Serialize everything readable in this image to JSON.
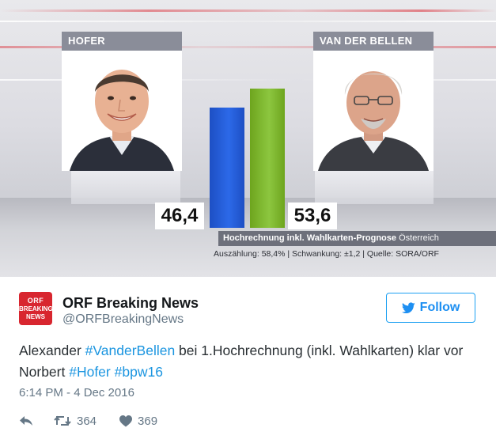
{
  "graphic": {
    "candidates": [
      {
        "name": "HOFER",
        "value": "46,4",
        "value_num": 46.4,
        "bar_color": "#2563e0"
      },
      {
        "name": "VAN DER BELLEN",
        "value": "53,6",
        "value_num": 53.6,
        "bar_color": "#8cc63f"
      }
    ],
    "caption_bold": "Hochrechnung inkl. Wahlkarten-Prognose",
    "caption_light": "Österreich",
    "subcaption": "Auszählung: 58,4% | Schwankung: ±1,2 | Quelle: SORA/ORF"
  },
  "account": {
    "avatar_top": "ORF",
    "avatar_line1": "BREAKING",
    "avatar_line2": "NEWS",
    "display_name": "ORF Breaking News",
    "handle": "@ORFBreakingNews",
    "avatar_color": "#d8262f"
  },
  "follow_button": {
    "label": "Follow",
    "icon": "twitter-bird-icon"
  },
  "tweet": {
    "t1": "Alexander ",
    "h1": "#VanderBellen",
    "t2": " bei 1.Hochrechnung (inkl. Wahlkarten) klar vor Norbert ",
    "h2": "#Hofer",
    "t3": " ",
    "h3": "#bpw16",
    "timestamp": "6:14 PM - 4 Dec 2016"
  },
  "actions": {
    "reply_icon": "reply-icon",
    "retweet_icon": "retweet-icon",
    "retweet_count": "364",
    "like_icon": "heart-icon",
    "like_count": "369"
  },
  "colors": {
    "link": "#1b95e0",
    "twitter_blue": "#1da1f2",
    "muted": "#657786"
  }
}
